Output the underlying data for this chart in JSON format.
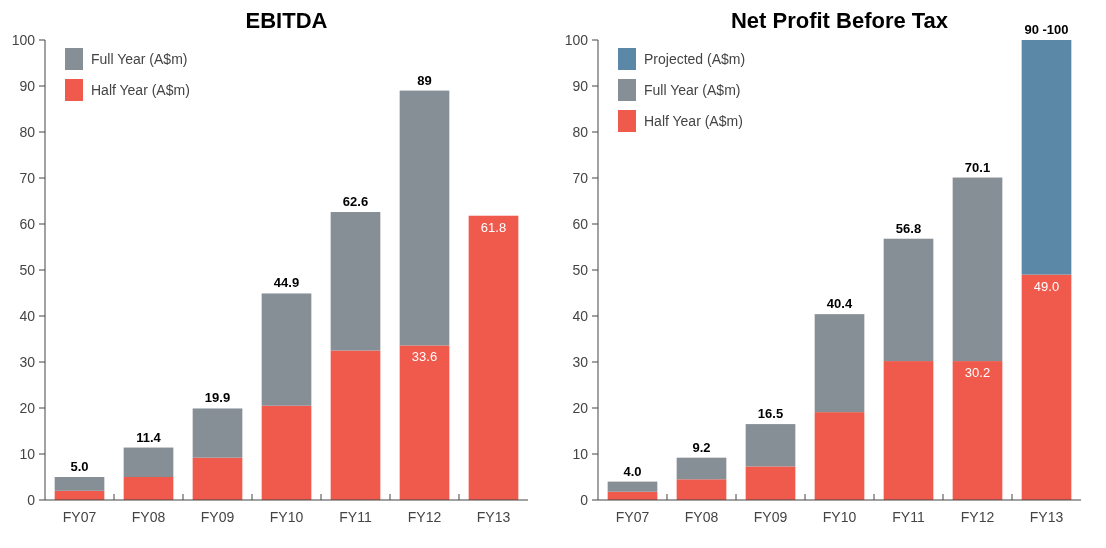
{
  "chart_data": [
    {
      "type": "bar",
      "title": "EBITDA",
      "categories": [
        "FY07",
        "FY08",
        "FY09",
        "FY10",
        "FY11",
        "FY12",
        "FY13"
      ],
      "stacked": true,
      "ylim": [
        0,
        100
      ],
      "yticks": [
        0,
        10,
        20,
        30,
        40,
        50,
        60,
        70,
        80,
        90,
        100
      ],
      "legend": "top left",
      "series": [
        {
          "name": "Half Year (A$m)",
          "color": "#ef5a4c",
          "values": [
            2,
            5,
            9.2,
            20.5,
            32.5,
            33.6,
            61.8
          ],
          "value_labels": [
            null,
            null,
            null,
            null,
            null,
            "33.6",
            "61.8"
          ]
        },
        {
          "name": "Full Year (A$m)",
          "color": "#868e96",
          "values": [
            3,
            6.4,
            10.7,
            24.4,
            30.1,
            55.4,
            null
          ]
        }
      ],
      "totals": [
        "5.0",
        "11.4",
        "19.9",
        "44.9",
        "62.6",
        "89",
        null
      ]
    },
    {
      "type": "bar",
      "title": "Net Profit Before Tax",
      "categories": [
        "FY07",
        "FY08",
        "FY09",
        "FY10",
        "FY11",
        "FY12",
        "FY13"
      ],
      "stacked": true,
      "ylim": [
        0,
        100
      ],
      "yticks": [
        0,
        10,
        20,
        30,
        40,
        50,
        60,
        70,
        80,
        90,
        100
      ],
      "legend": "top left",
      "series": [
        {
          "name": "Half Year (A$m)",
          "color": "#ef5a4c",
          "values": [
            1.8,
            4.5,
            7.3,
            19.1,
            30.2,
            30.2,
            49.0
          ],
          "value_labels": [
            null,
            null,
            null,
            null,
            null,
            "30.2",
            "49.0"
          ]
        },
        {
          "name": "Full Year (A$m)",
          "color": "#868e96",
          "values": [
            2.2,
            4.7,
            9.2,
            21.3,
            26.6,
            39.9,
            null
          ]
        },
        {
          "name": "Projected (A$m)",
          "color": "#5a88a6",
          "values": [
            null,
            null,
            null,
            null,
            null,
            null,
            51
          ]
        }
      ],
      "totals": [
        "4.0",
        "9.2",
        "16.5",
        "40.4",
        "56.8",
        "70.1",
        "90 -100"
      ]
    }
  ]
}
